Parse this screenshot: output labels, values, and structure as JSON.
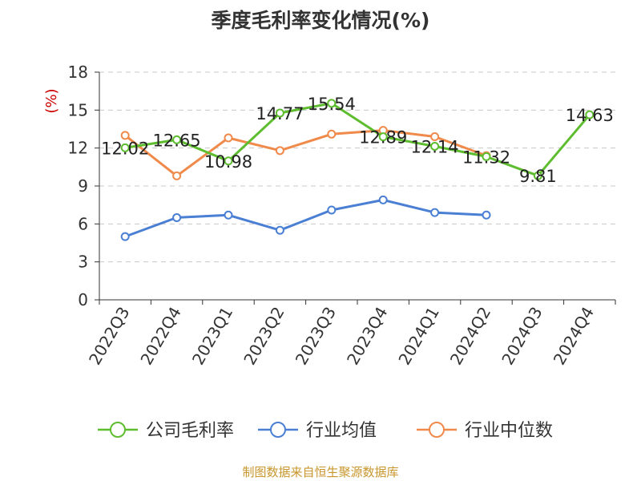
{
  "chart_data": {
    "type": "line",
    "title": "季度毛利率变化情况(%)",
    "ylabel": "(%)",
    "ylim": [
      0,
      18
    ],
    "yticks": [
      0,
      3,
      6,
      9,
      12,
      15,
      18
    ],
    "grid": true,
    "legend_position": "bottom",
    "categories": [
      "2022Q3",
      "2022Q4",
      "2023Q1",
      "2023Q2",
      "2023Q3",
      "2023Q4",
      "2024Q1",
      "2024Q2",
      "2024Q3",
      "2024Q4"
    ],
    "series": [
      {
        "name": "公司毛利率",
        "color": "#5ebd2f",
        "show_labels": true,
        "values": [
          12.02,
          12.65,
          10.98,
          14.77,
          15.54,
          12.89,
          12.14,
          11.32,
          9.81,
          14.63
        ]
      },
      {
        "name": "行业均值",
        "color": "#4a7fd4",
        "show_labels": false,
        "values": [
          5.0,
          6.5,
          6.7,
          5.5,
          7.1,
          7.9,
          6.9,
          6.7,
          null,
          null
        ]
      },
      {
        "name": "行业中位数",
        "color": "#f08a4b",
        "show_labels": false,
        "values": [
          13.0,
          9.8,
          12.8,
          11.8,
          13.1,
          13.4,
          12.9,
          11.4,
          null,
          null
        ]
      }
    ]
  },
  "source": "制图数据来自恒生聚源数据库"
}
